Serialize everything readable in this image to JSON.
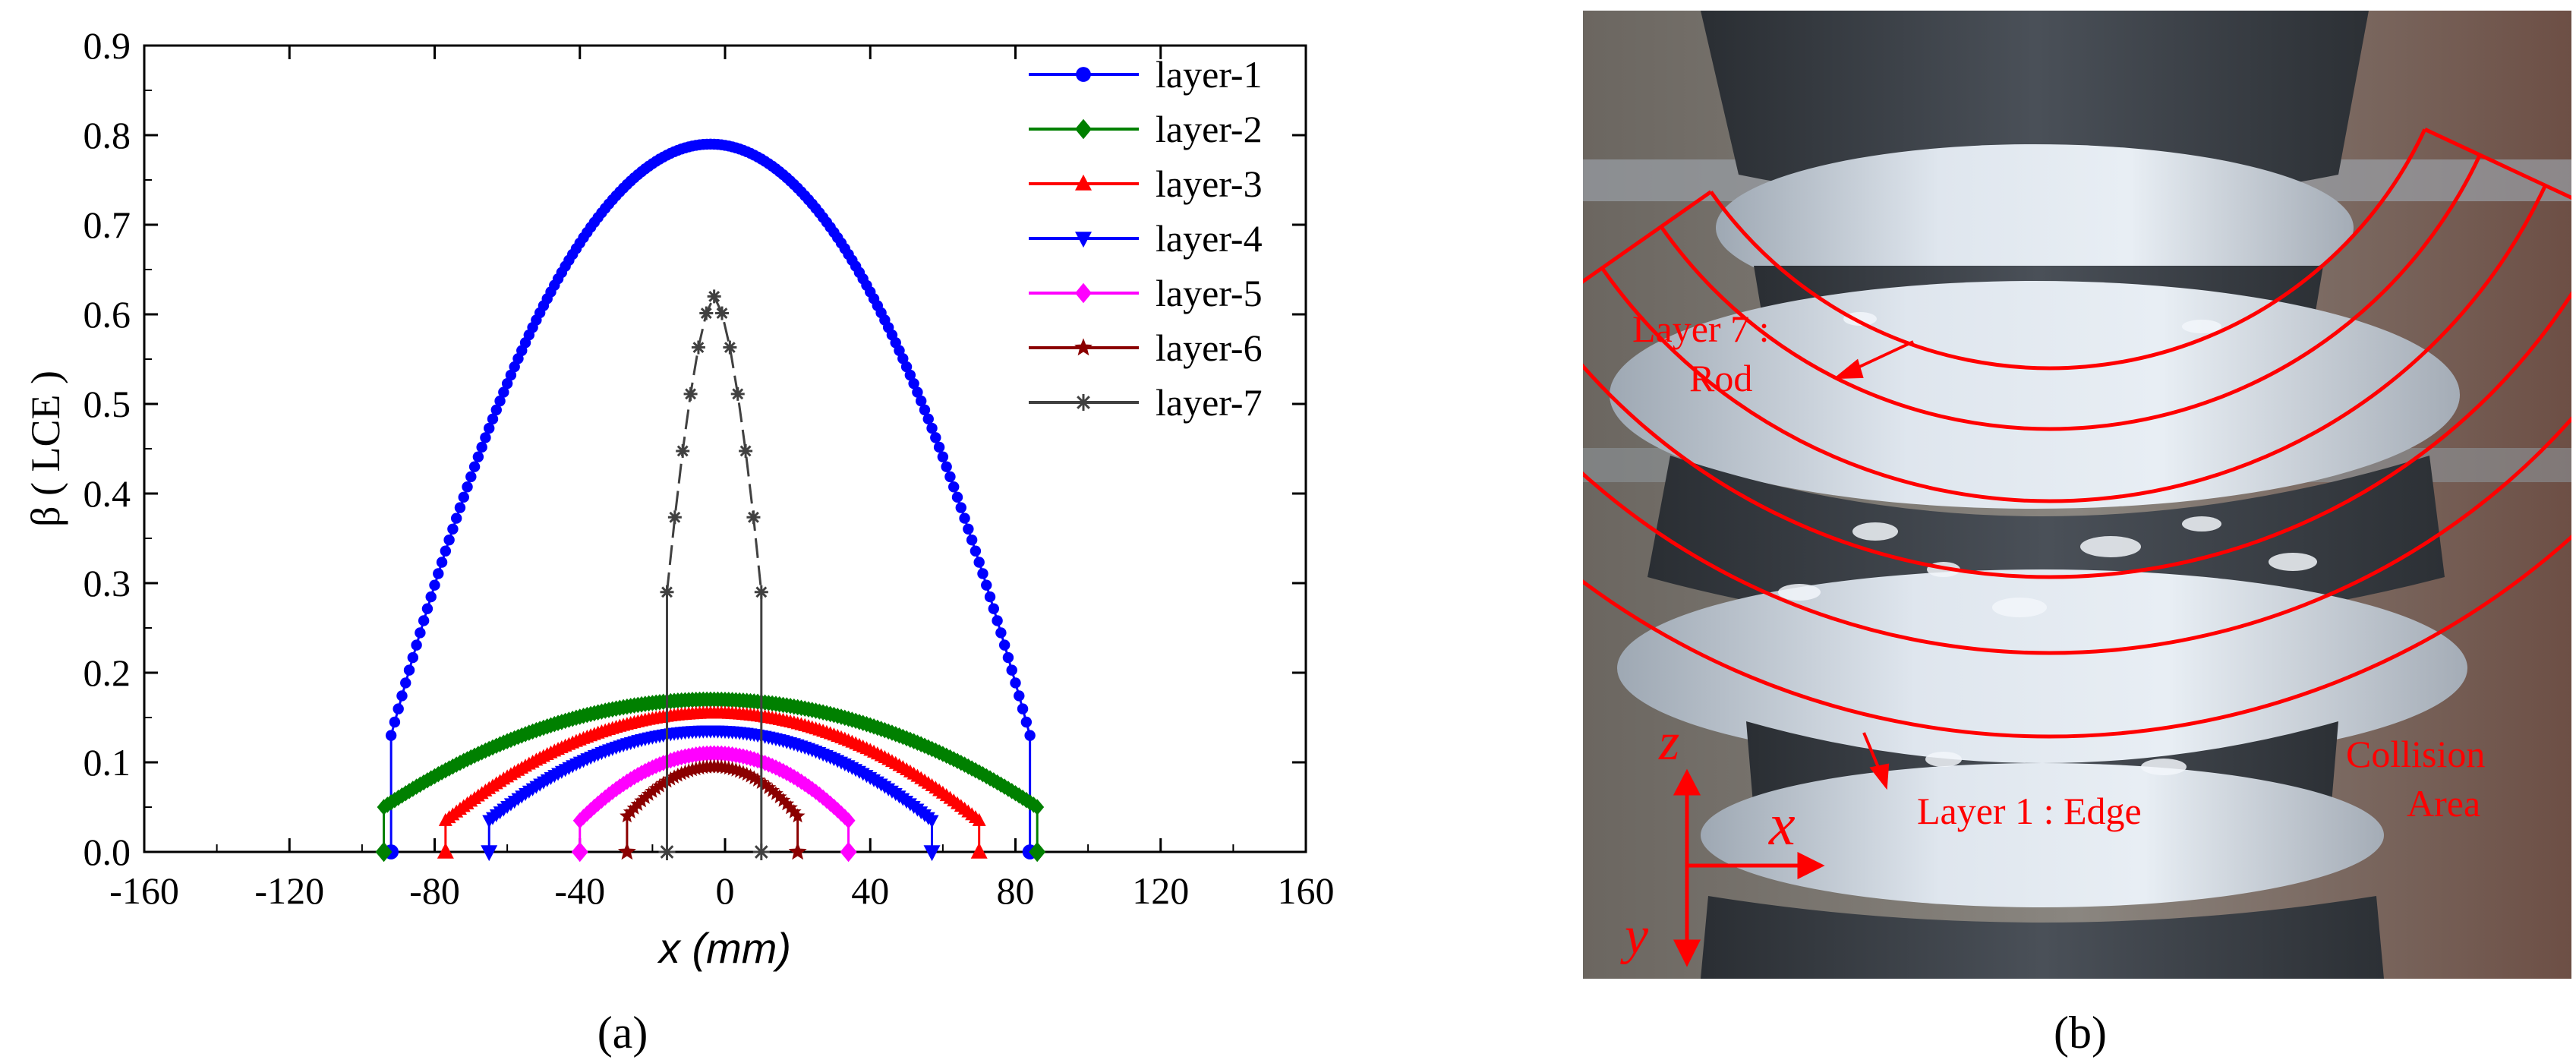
{
  "panels": {
    "a_label": "(a)",
    "b_label": "(b)"
  },
  "chart_data": {
    "type": "line",
    "xlabel": "x (mm)",
    "ylabel": "β ( LCE )",
    "xlim": [
      -160,
      160
    ],
    "ylim": [
      0,
      0.9
    ],
    "xticks": [
      -160,
      -120,
      -80,
      -40,
      0,
      40,
      80,
      120,
      160
    ],
    "yticks": [
      0.0,
      0.1,
      0.2,
      0.3,
      0.4,
      0.5,
      0.6,
      0.7,
      0.8,
      0.9
    ],
    "grid": false,
    "legend_position": "top-right",
    "series": [
      {
        "name": "layer-1",
        "color": "#0000ff",
        "marker": "circle",
        "xmin": -92,
        "xmax": 84,
        "peak_x": -4,
        "peak_y": 0.79,
        "edge_y": 0.13
      },
      {
        "name": "layer-2",
        "color": "#008000",
        "marker": "diamond",
        "xmin": -94,
        "xmax": 86,
        "peak_x": -4,
        "peak_y": 0.17,
        "edge_y": 0.05
      },
      {
        "name": "layer-3",
        "color": "#ff0000",
        "marker": "triangle-up",
        "xmin": -77,
        "xmax": 70,
        "peak_x": -3,
        "peak_y": 0.155,
        "edge_y": 0.035
      },
      {
        "name": "layer-4",
        "color": "#0000ff",
        "marker": "triangle-down",
        "xmin": -65,
        "xmax": 57,
        "peak_x": -4,
        "peak_y": 0.135,
        "edge_y": 0.035
      },
      {
        "name": "layer-5",
        "color": "#ff00ff",
        "marker": "diamond",
        "xmin": -40,
        "xmax": 34,
        "peak_x": -3,
        "peak_y": 0.11,
        "edge_y": 0.035
      },
      {
        "name": "layer-6",
        "color": "#8b0000",
        "marker": "star",
        "xmin": -27,
        "xmax": 20,
        "peak_x": -3,
        "peak_y": 0.095,
        "edge_y": 0.04
      },
      {
        "name": "layer-7",
        "color": "#404040",
        "marker": "asterisk",
        "xmin": -16,
        "xmax": 10,
        "peak_x": -3,
        "peak_y": 0.62,
        "edge_y": 0.29
      }
    ]
  },
  "photo": {
    "annotations": {
      "layer7_line1": "Layer 7 :",
      "layer7_line2": "Rod",
      "layer1": "Layer 1 : Edge",
      "collision_line1": "Collision",
      "collision_line2": "Area",
      "axis_z": "z",
      "axis_x": "x",
      "axis_y": "y"
    },
    "annotation_color": "#ff0000"
  }
}
